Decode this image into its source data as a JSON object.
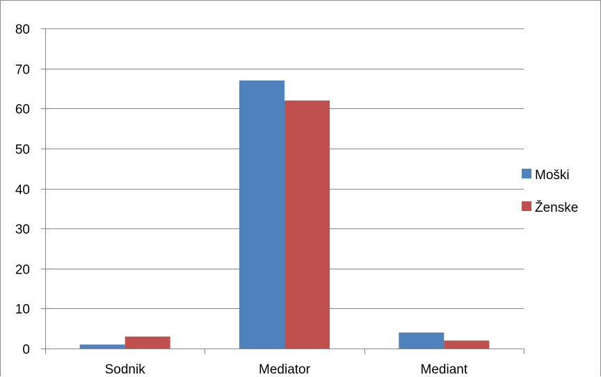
{
  "chart_data": {
    "type": "bar",
    "categories": [
      "Sodnik",
      "Mediator",
      "Mediant"
    ],
    "series": [
      {
        "name": "Moški",
        "values": [
          1,
          67,
          4
        ],
        "color": "#4f81bd"
      },
      {
        "name": "Ženske",
        "values": [
          3,
          62,
          2
        ],
        "color": "#c0504d"
      }
    ],
    "ylim": [
      0,
      80
    ],
    "yticks": [
      0,
      10,
      20,
      30,
      40,
      50,
      60,
      70,
      80
    ],
    "grid": true,
    "legend_position": "right",
    "title": "",
    "xlabel": "",
    "ylabel": ""
  }
}
